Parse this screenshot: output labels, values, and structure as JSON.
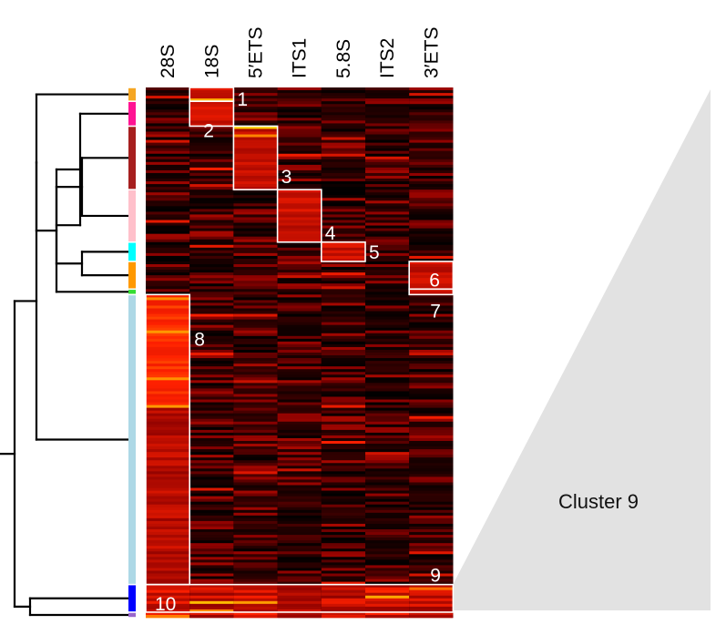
{
  "chart_data": {
    "type": "heatmap",
    "title": "",
    "columns": [
      "28S",
      "18S",
      "5′ETS",
      "ITS1",
      "5.8S",
      "ITS2",
      "3′ETS"
    ],
    "row_groups": [
      {
        "id": "1",
        "rows": 5,
        "color": "#f5a623"
      },
      {
        "id": "2",
        "rows": 9,
        "color": "#ff1493"
      },
      {
        "id": "3",
        "rows": 23,
        "color": "#a61f1f"
      },
      {
        "id": "4",
        "rows": 19,
        "color": "#ffc0cb"
      },
      {
        "id": "5",
        "rows": 7,
        "color": "#00ffff"
      },
      {
        "id": "6",
        "rows": 10,
        "color": "#ff9900"
      },
      {
        "id": "7",
        "rows": 2,
        "color": "#33dd33"
      },
      {
        "id": "8",
        "rows": 105,
        "color": "#add8e6"
      },
      {
        "id": "10",
        "rows": 10,
        "color": "#0000ff"
      },
      {
        "id": "11",
        "rows": 2,
        "color": "#9966cc"
      }
    ],
    "enriched_blocks": [
      {
        "label": "1",
        "group": "1",
        "column": "18S"
      },
      {
        "label": "2",
        "group": "2",
        "column": "18S"
      },
      {
        "label": "3",
        "group": "3",
        "column": "5′ETS"
      },
      {
        "label": "4",
        "group": "4",
        "column": "ITS1"
      },
      {
        "label": "5",
        "group": "5",
        "column": "5.8S"
      },
      {
        "label": "6",
        "group": "6",
        "column": "3′ETS"
      },
      {
        "label": "7",
        "group": "7",
        "column": "3′ETS"
      },
      {
        "label": "8",
        "group": "8",
        "column": "28S"
      },
      {
        "label": "9",
        "group": "8",
        "column": "all"
      },
      {
        "label": "10",
        "group": "10",
        "column": "all"
      }
    ],
    "cluster_labels": [
      "1",
      "2",
      "3",
      "4",
      "5",
      "6",
      "7",
      "8",
      "9",
      "10"
    ],
    "zoom_label": "Cluster 9",
    "colormap": [
      "#000000",
      "#8b0000",
      "#ff2000",
      "#ffd000"
    ],
    "grid": false
  }
}
